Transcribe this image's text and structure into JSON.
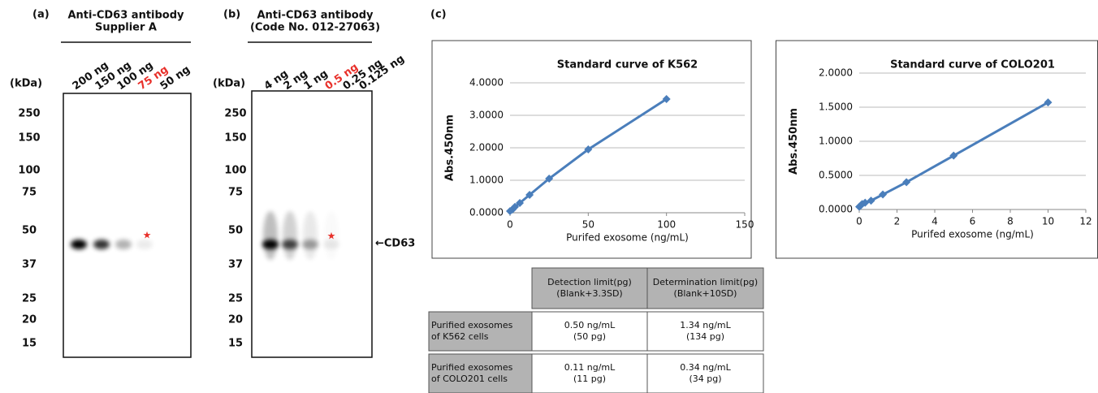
{
  "panels": {
    "a": {
      "label": "(a)",
      "title": [
        "Anti-CD63 antibody",
        "Supplier A"
      ],
      "unit": "(kDa)",
      "lanes": [
        "200 ng",
        "150 ng",
        "100 ng",
        "75 ng",
        "50 ng"
      ],
      "highlight_lane": 3,
      "markers": [
        "250",
        "150",
        "100",
        "75",
        "50",
        "37",
        "25",
        "20",
        "15"
      ],
      "star": "★"
    },
    "b": {
      "label": "(b)",
      "title": [
        "Anti-CD63 antibody",
        "(Code No. 012-27063)"
      ],
      "unit": "(kDa)",
      "lanes": [
        "4 ng",
        "2 ng",
        "1 ng",
        "0.5 ng",
        "0.25 ng",
        "0.125 ng"
      ],
      "highlight_lane": 3,
      "markers": [
        "250",
        "150",
        "100",
        "75",
        "50",
        "37",
        "25",
        "20",
        "15"
      ],
      "star": "★",
      "band_label": "←CD63"
    },
    "c": {
      "label": "(c)"
    },
    "highlight_color": "#e8302a"
  },
  "chart_data": [
    {
      "type": "line",
      "title": "Standard curve of K562",
      "x_label": "Purifed exosome (ng/mL)",
      "y_label": "Abs.450nm",
      "x": [
        0,
        1.5625,
        3.125,
        6.25,
        12.5,
        25,
        50,
        100
      ],
      "values": [
        0.05,
        0.1,
        0.18,
        0.3,
        0.55,
        1.05,
        1.95,
        3.5
      ],
      "color": "#4a7ebb",
      "xlim": [
        0,
        150
      ],
      "xticks": [
        0,
        50,
        100,
        150
      ],
      "ylim": [
        0,
        4
      ],
      "yticks": [
        {
          "value": 0,
          "label": "0.0000"
        },
        {
          "value": 1,
          "label": "1.0000"
        },
        {
          "value": 2,
          "label": "2.0000"
        },
        {
          "value": 3,
          "label": "3.0000"
        },
        {
          "value": 4,
          "label": "4.0000"
        }
      ],
      "grid": true
    },
    {
      "type": "line",
      "title": "Standard curve of COLO201",
      "x_label": "Purifed exosome (ng/mL)",
      "y_label": "Abs.450nm",
      "x": [
        0,
        0.078,
        0.156,
        0.3125,
        0.625,
        1.25,
        2.5,
        5,
        10
      ],
      "values": [
        0.04,
        0.06,
        0.08,
        0.1,
        0.13,
        0.22,
        0.4,
        0.79,
        1.57
      ],
      "color": "#4a7ebb",
      "xlim": [
        0,
        12
      ],
      "xticks": [
        0,
        2,
        4,
        6,
        8,
        10,
        12
      ],
      "ylim": [
        0,
        2
      ],
      "yticks": [
        {
          "value": 0,
          "label": "0.0000"
        },
        {
          "value": 0.5,
          "label": "0.5000"
        },
        {
          "value": 1,
          "label": "1.0000"
        },
        {
          "value": 1.5,
          "label": "1.5000"
        },
        {
          "value": 2,
          "label": "2.0000"
        }
      ],
      "grid": true
    }
  ],
  "table": {
    "header": [
      [
        "Detection limit(pg)",
        "(Blank+3.3SD)"
      ],
      [
        "Determination limit(pg)",
        "(Blank+10SD)"
      ]
    ],
    "rows": [
      {
        "label": [
          "Purified exosomes",
          "of K562 cells"
        ],
        "cells": [
          [
            "0.50 ng/mL",
            "(50 pg)"
          ],
          [
            "1.34 ng/mL",
            "(134 pg)"
          ]
        ]
      },
      {
        "label": [
          "Purified exosomes",
          "of COLO201 cells"
        ],
        "cells": [
          [
            "0.11 ng/mL",
            "(11 pg)"
          ],
          [
            "0.34 ng/mL",
            "(34 pg)"
          ]
        ]
      }
    ]
  }
}
